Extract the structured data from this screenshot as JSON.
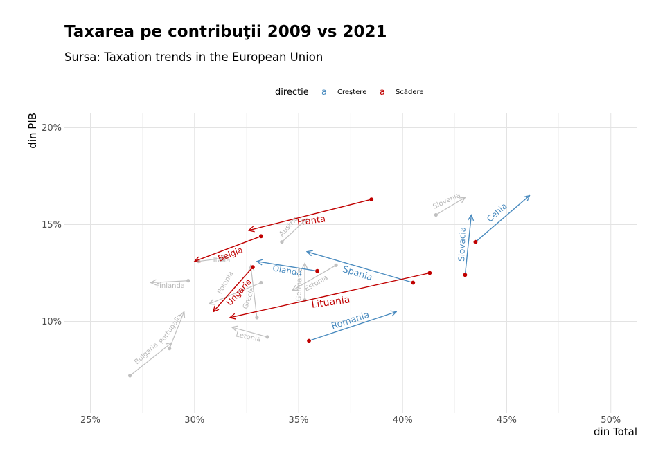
{
  "title": "Taxarea pe contribuţii 2009 vs 2021",
  "subtitle": "Sursa: Taxation trends in the European Union",
  "legend": {
    "title": "directie",
    "items": [
      {
        "key": "a",
        "label": "Creştere",
        "color": "#4a8bbf"
      },
      {
        "key": "a",
        "label": "Scădere",
        "color": "#c00000"
      }
    ]
  },
  "colors": {
    "increase": "#4a8bbf",
    "decrease": "#c00000",
    "neutral": "#c0c0c0"
  },
  "chart_data": {
    "type": "scatter",
    "xlabel": "din Total",
    "ylabel": "din PIB",
    "xlim": [
      23.8,
      51.3
    ],
    "ylim": [
      5.3,
      20.7
    ],
    "xticks": [
      25,
      30,
      35,
      40,
      45,
      50
    ],
    "yticks": [
      10,
      15,
      20
    ],
    "xtick_labels": [
      "25%",
      "30%",
      "35%",
      "40%",
      "45%",
      "50%"
    ],
    "ytick_labels": [
      "10%",
      "15%",
      "20%"
    ],
    "grid": true,
    "legend_position": "top",
    "series": [
      {
        "country": "Franta",
        "direction": "decrease",
        "from": [
          38.5,
          16.3
        ],
        "to": [
          32.6,
          14.7
        ]
      },
      {
        "country": "Belgia",
        "direction": "decrease",
        "from": [
          33.2,
          14.4
        ],
        "to": [
          30.0,
          13.1
        ]
      },
      {
        "country": "Ungaria",
        "direction": "decrease",
        "from": [
          32.8,
          12.8
        ],
        "to": [
          30.9,
          10.5
        ]
      },
      {
        "country": "Lituania",
        "direction": "decrease",
        "from": [
          41.3,
          12.5
        ],
        "to": [
          31.7,
          10.2
        ]
      },
      {
        "country": "Olanda",
        "direction": "increase",
        "from": [
          35.9,
          12.6
        ],
        "to": [
          33.0,
          13.1
        ]
      },
      {
        "country": "Spania",
        "direction": "increase",
        "from": [
          40.5,
          12.0
        ],
        "to": [
          35.4,
          13.6
        ]
      },
      {
        "country": "Romania",
        "direction": "increase",
        "from": [
          35.5,
          9.0
        ],
        "to": [
          39.7,
          10.5
        ]
      },
      {
        "country": "Slovacia",
        "direction": "increase",
        "from": [
          43.0,
          12.4
        ],
        "to": [
          43.3,
          15.5
        ]
      },
      {
        "country": "Cehia",
        "direction": "increase",
        "from": [
          43.5,
          14.1
        ],
        "to": [
          46.1,
          16.5
        ]
      },
      {
        "country": "Slovenia",
        "direction": "neutral",
        "from": [
          41.6,
          15.5
        ],
        "to": [
          43.0,
          16.4
        ]
      },
      {
        "country": "Austria",
        "direction": "neutral",
        "from": [
          34.2,
          14.1
        ],
        "to": [
          35.4,
          15.3
        ]
      },
      {
        "country": "Italia",
        "direction": "neutral",
        "from": [
          30.2,
          13.1
        ],
        "to": [
          31.6,
          13.3
        ]
      },
      {
        "country": "Finlanda",
        "direction": "neutral",
        "from": [
          29.7,
          12.1
        ],
        "to": [
          27.9,
          12.0
        ]
      },
      {
        "country": "Germania",
        "direction": "neutral",
        "from": [
          35.3,
          11.1
        ],
        "to": [
          35.3,
          13.0
        ]
      },
      {
        "country": "Estonia",
        "direction": "neutral",
        "from": [
          36.8,
          12.9
        ],
        "to": [
          34.7,
          11.6
        ]
      },
      {
        "country": "Grecia",
        "direction": "neutral",
        "from": [
          33.0,
          10.2
        ],
        "to": [
          32.7,
          12.9
        ]
      },
      {
        "country": "Polonia",
        "direction": "neutral",
        "from": [
          33.2,
          12.0
        ],
        "to": [
          30.7,
          10.9
        ]
      },
      {
        "country": "Letonia",
        "direction": "neutral",
        "from": [
          33.5,
          9.2
        ],
        "to": [
          31.8,
          9.7
        ]
      },
      {
        "country": "Bulgaria",
        "direction": "neutral",
        "from": [
          26.9,
          7.2
        ],
        "to": [
          28.9,
          8.9
        ]
      },
      {
        "country": "Portugalia",
        "direction": "neutral",
        "from": [
          28.8,
          8.6
        ],
        "to": [
          29.5,
          10.5
        ]
      }
    ]
  }
}
